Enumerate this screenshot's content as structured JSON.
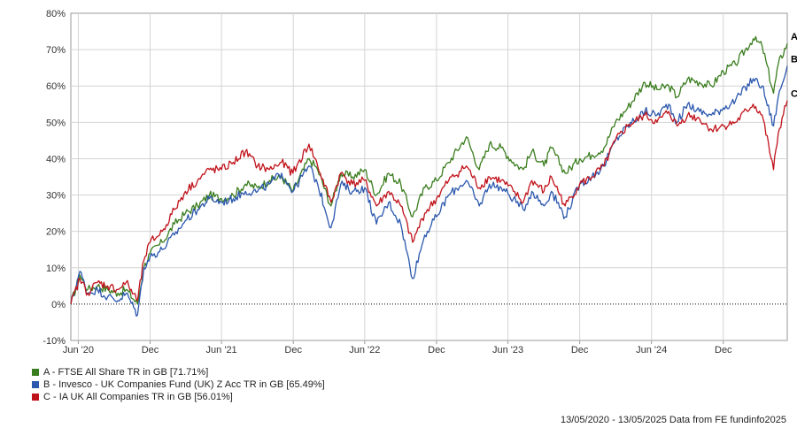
{
  "chart_data": {
    "type": "line",
    "y_unit": "%",
    "ylim": [
      -10,
      80
    ],
    "y_ticks": [
      -10,
      0,
      10,
      20,
      30,
      40,
      50,
      60,
      70,
      80
    ],
    "y_tick_labels": [
      "-10%",
      "0%",
      "10%",
      "20%",
      "30%",
      "40%",
      "50%",
      "60%",
      "70%",
      "80%"
    ],
    "x_ticks": [
      "2020-06-01",
      "2020-12-01",
      "2021-06-01",
      "2021-12-01",
      "2022-06-01",
      "2022-12-01",
      "2023-06-01",
      "2023-12-01",
      "2024-06-01",
      "2024-12-01"
    ],
    "x_tick_labels": [
      "Jun '20",
      "Dec",
      "Jun '21",
      "Dec",
      "Jun '22",
      "Dec",
      "Jun '23",
      "Dec",
      "Jun '24",
      "Dec"
    ],
    "xlim": [
      "2020-05-13",
      "2025-05-13"
    ],
    "grid": true,
    "zero_line": "dotted",
    "legend_position": "bottom-left",
    "series": [
      {
        "key": "A",
        "name": "A - FTSE All Share TR in GB [71.71%]",
        "color": "#3a7d1e",
        "points": [
          [
            "2020-05-13",
            0
          ],
          [
            "2020-06-05",
            8
          ],
          [
            "2020-06-25",
            4
          ],
          [
            "2020-07-20",
            5
          ],
          [
            "2020-08-15",
            4
          ],
          [
            "2020-09-10",
            3
          ],
          [
            "2020-10-01",
            4
          ],
          [
            "2020-10-30",
            0
          ],
          [
            "2020-11-15",
            10
          ],
          [
            "2020-12-01",
            14
          ],
          [
            "2021-01-01",
            17
          ],
          [
            "2021-02-01",
            22
          ],
          [
            "2021-03-01",
            25
          ],
          [
            "2021-04-01",
            27
          ],
          [
            "2021-05-01",
            30
          ],
          [
            "2021-06-01",
            29
          ],
          [
            "2021-07-01",
            30
          ],
          [
            "2021-08-01",
            33
          ],
          [
            "2021-09-01",
            32
          ],
          [
            "2021-10-01",
            34
          ],
          [
            "2021-11-01",
            35
          ],
          [
            "2021-11-30",
            31
          ],
          [
            "2022-01-10",
            40
          ],
          [
            "2022-02-01",
            37
          ],
          [
            "2022-03-07",
            27
          ],
          [
            "2022-04-01",
            36
          ],
          [
            "2022-05-01",
            35
          ],
          [
            "2022-06-01",
            37
          ],
          [
            "2022-07-01",
            30
          ],
          [
            "2022-08-01",
            36
          ],
          [
            "2022-09-01",
            33
          ],
          [
            "2022-10-01",
            24
          ],
          [
            "2022-11-01",
            32
          ],
          [
            "2022-12-01",
            34
          ],
          [
            "2023-01-01",
            39
          ],
          [
            "2023-02-15",
            46
          ],
          [
            "2023-03-20",
            37
          ],
          [
            "2023-04-15",
            44
          ],
          [
            "2023-05-15",
            43
          ],
          [
            "2023-06-15",
            39
          ],
          [
            "2023-07-10",
            37
          ],
          [
            "2023-08-01",
            42
          ],
          [
            "2023-09-01",
            38
          ],
          [
            "2023-09-20",
            43
          ],
          [
            "2023-10-25",
            36
          ],
          [
            "2023-12-01",
            40
          ],
          [
            "2024-01-01",
            41
          ],
          [
            "2024-02-01",
            43
          ],
          [
            "2024-03-01",
            50
          ],
          [
            "2024-04-01",
            54
          ],
          [
            "2024-05-15",
            61
          ],
          [
            "2024-06-15",
            59
          ],
          [
            "2024-07-15",
            60
          ],
          [
            "2024-08-05",
            57
          ],
          [
            "2024-09-01",
            62
          ],
          [
            "2024-10-01",
            61
          ],
          [
            "2024-11-01",
            60
          ],
          [
            "2024-12-01",
            64
          ],
          [
            "2025-01-01",
            66
          ],
          [
            "2025-02-15",
            73
          ],
          [
            "2025-03-10",
            71
          ],
          [
            "2025-04-08",
            58
          ],
          [
            "2025-04-20",
            66
          ],
          [
            "2025-05-13",
            71.7
          ]
        ]
      },
      {
        "key": "B",
        "name": "B - Invesco - UK Companies Fund (UK) Z Acc TR in GB [65.49%]",
        "color": "#2b57ad",
        "points": [
          [
            "2020-05-13",
            0
          ],
          [
            "2020-06-05",
            9
          ],
          [
            "2020-06-25",
            3
          ],
          [
            "2020-07-20",
            4
          ],
          [
            "2020-08-15",
            2
          ],
          [
            "2020-09-10",
            1
          ],
          [
            "2020-10-01",
            3
          ],
          [
            "2020-10-30",
            -3
          ],
          [
            "2020-11-15",
            10
          ],
          [
            "2020-12-01",
            13
          ],
          [
            "2021-01-01",
            15
          ],
          [
            "2021-02-01",
            19
          ],
          [
            "2021-03-01",
            23
          ],
          [
            "2021-04-01",
            26
          ],
          [
            "2021-05-01",
            29
          ],
          [
            "2021-06-01",
            28
          ],
          [
            "2021-07-01",
            29
          ],
          [
            "2021-08-01",
            31
          ],
          [
            "2021-09-01",
            31
          ],
          [
            "2021-10-01",
            33
          ],
          [
            "2021-11-01",
            36
          ],
          [
            "2021-11-30",
            31
          ],
          [
            "2022-01-10",
            38
          ],
          [
            "2022-02-01",
            33
          ],
          [
            "2022-03-07",
            21
          ],
          [
            "2022-04-01",
            33
          ],
          [
            "2022-05-01",
            31
          ],
          [
            "2022-06-01",
            32
          ],
          [
            "2022-07-01",
            22
          ],
          [
            "2022-08-01",
            28
          ],
          [
            "2022-09-01",
            22
          ],
          [
            "2022-10-01",
            7
          ],
          [
            "2022-11-01",
            19
          ],
          [
            "2022-12-01",
            24
          ],
          [
            "2023-01-01",
            30
          ],
          [
            "2023-02-15",
            34
          ],
          [
            "2023-03-20",
            27
          ],
          [
            "2023-04-15",
            33
          ],
          [
            "2023-05-15",
            32
          ],
          [
            "2023-06-15",
            29
          ],
          [
            "2023-07-10",
            26
          ],
          [
            "2023-08-01",
            31
          ],
          [
            "2023-09-01",
            27
          ],
          [
            "2023-09-20",
            31
          ],
          [
            "2023-10-25",
            24
          ],
          [
            "2023-12-01",
            33
          ],
          [
            "2024-01-01",
            35
          ],
          [
            "2024-02-01",
            38
          ],
          [
            "2024-03-01",
            45
          ],
          [
            "2024-04-01",
            49
          ],
          [
            "2024-05-15",
            53
          ],
          [
            "2024-06-15",
            52
          ],
          [
            "2024-07-15",
            55
          ],
          [
            "2024-08-05",
            50
          ],
          [
            "2024-09-01",
            55
          ],
          [
            "2024-10-01",
            53
          ],
          [
            "2024-11-01",
            52
          ],
          [
            "2024-12-01",
            54
          ],
          [
            "2025-01-01",
            56
          ],
          [
            "2025-02-15",
            62
          ],
          [
            "2025-03-10",
            60
          ],
          [
            "2025-04-08",
            49
          ],
          [
            "2025-04-20",
            57
          ],
          [
            "2025-05-13",
            65.5
          ]
        ]
      },
      {
        "key": "C",
        "name": "C - IA UK All Companies TR in GB [56.01%]",
        "color": "#c0121a",
        "points": [
          [
            "2020-05-13",
            0
          ],
          [
            "2020-06-05",
            7
          ],
          [
            "2020-06-25",
            3
          ],
          [
            "2020-07-20",
            6
          ],
          [
            "2020-08-15",
            5
          ],
          [
            "2020-09-10",
            4
          ],
          [
            "2020-10-01",
            6
          ],
          [
            "2020-10-30",
            1
          ],
          [
            "2020-11-15",
            12
          ],
          [
            "2020-12-01",
            17
          ],
          [
            "2021-01-01",
            20
          ],
          [
            "2021-02-01",
            26
          ],
          [
            "2021-03-01",
            31
          ],
          [
            "2021-04-01",
            34
          ],
          [
            "2021-05-01",
            37
          ],
          [
            "2021-06-01",
            37
          ],
          [
            "2021-07-01",
            39
          ],
          [
            "2021-08-01",
            42
          ],
          [
            "2021-09-01",
            38
          ],
          [
            "2021-10-01",
            37
          ],
          [
            "2021-11-01",
            39
          ],
          [
            "2021-11-30",
            36
          ],
          [
            "2022-01-10",
            44
          ],
          [
            "2022-02-01",
            38
          ],
          [
            "2022-03-07",
            28
          ],
          [
            "2022-04-01",
            36
          ],
          [
            "2022-05-01",
            33
          ],
          [
            "2022-06-01",
            34
          ],
          [
            "2022-07-01",
            27
          ],
          [
            "2022-08-01",
            31
          ],
          [
            "2022-09-01",
            27
          ],
          [
            "2022-10-01",
            17
          ],
          [
            "2022-11-01",
            25
          ],
          [
            "2022-12-01",
            29
          ],
          [
            "2023-01-01",
            34
          ],
          [
            "2023-02-15",
            38
          ],
          [
            "2023-03-20",
            32
          ],
          [
            "2023-04-15",
            35
          ],
          [
            "2023-05-15",
            34
          ],
          [
            "2023-06-15",
            31
          ],
          [
            "2023-07-10",
            28
          ],
          [
            "2023-08-01",
            34
          ],
          [
            "2023-09-01",
            31
          ],
          [
            "2023-09-20",
            35
          ],
          [
            "2023-10-25",
            27
          ],
          [
            "2023-12-01",
            33
          ],
          [
            "2024-01-01",
            35
          ],
          [
            "2024-02-01",
            38
          ],
          [
            "2024-03-01",
            45
          ],
          [
            "2024-04-01",
            49
          ],
          [
            "2024-05-15",
            52
          ],
          [
            "2024-06-15",
            50
          ],
          [
            "2024-07-15",
            53
          ],
          [
            "2024-08-05",
            49
          ],
          [
            "2024-09-01",
            52
          ],
          [
            "2024-10-01",
            51
          ],
          [
            "2024-11-01",
            48
          ],
          [
            "2024-12-01",
            49
          ],
          [
            "2025-01-01",
            50
          ],
          [
            "2025-02-15",
            55
          ],
          [
            "2025-03-10",
            52
          ],
          [
            "2025-04-08",
            37
          ],
          [
            "2025-04-20",
            47
          ],
          [
            "2025-05-13",
            56.0
          ]
        ]
      }
    ]
  },
  "footer": {
    "text": "13/05/2020 - 13/05/2025 Data from FE fundinfo2025"
  }
}
